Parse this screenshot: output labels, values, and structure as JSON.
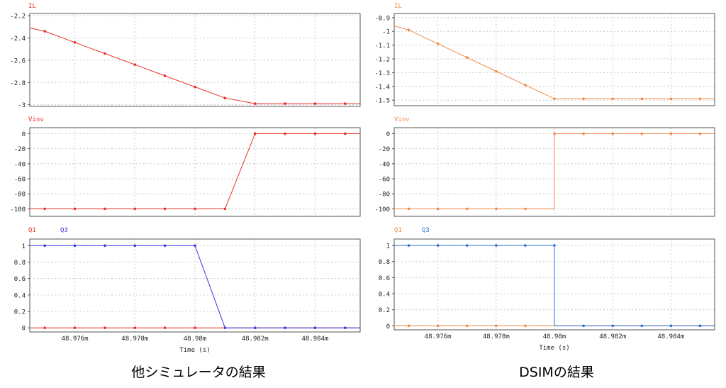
{
  "captions": {
    "left": "他シミュレータの結果",
    "right": "DSIMの結果"
  },
  "xlabel": "Time (s)",
  "colors": {
    "red": "#e8312a",
    "blue": "#3a3ae0",
    "orange": "#f08a4a",
    "dsimBlue": "#2f6fd6",
    "grid": "#c8c8c8",
    "axis": "#555555",
    "text": "#222222"
  },
  "chart_data": [
    {
      "id": "left-IL",
      "type": "line",
      "xlim": [
        48.9745,
        48.9855
      ],
      "ylim": [
        -3.015,
        -2.18
      ],
      "yticks": [
        -2.2,
        -2.4,
        -2.6,
        -2.8,
        -3
      ],
      "ytick_labels": [
        "-2.2",
        "-2.4",
        "-2.6",
        "-2.8",
        "-3"
      ],
      "xticks": [
        48.976,
        48.978,
        48.98,
        48.982,
        48.984
      ],
      "xtick_labels": [],
      "legend": [
        "IL"
      ],
      "series": [
        {
          "name": "IL",
          "color": "red",
          "x": [
            48.9745,
            48.975,
            48.976,
            48.977,
            48.978,
            48.979,
            48.98,
            48.981,
            48.982,
            48.983,
            48.984,
            48.985,
            48.9855
          ],
          "y": [
            -2.31,
            -2.34,
            -2.44,
            -2.54,
            -2.64,
            -2.74,
            -2.84,
            -2.94,
            -2.99,
            -2.99,
            -2.99,
            -2.99,
            -2.99
          ],
          "mx": [
            48.975,
            48.976,
            48.977,
            48.978,
            48.979,
            48.98,
            48.981,
            48.982,
            48.983,
            48.984,
            48.985
          ],
          "my": [
            -2.34,
            -2.44,
            -2.54,
            -2.64,
            -2.74,
            -2.84,
            -2.94,
            -2.99,
            -2.99,
            -2.99,
            -2.99
          ]
        }
      ]
    },
    {
      "id": "left-Vinv",
      "type": "line",
      "xlim": [
        48.9745,
        48.9855
      ],
      "ylim": [
        -110,
        8
      ],
      "yticks": [
        0,
        -20,
        -40,
        -60,
        -80,
        -100
      ],
      "ytick_labels": [
        "0",
        "-20",
        "-40",
        "-60",
        "-80",
        "-100"
      ],
      "xticks": [
        48.976,
        48.978,
        48.98,
        48.982,
        48.984
      ],
      "xtick_labels": [],
      "legend": [
        "Vinv"
      ],
      "series": [
        {
          "name": "Vinv",
          "color": "red",
          "x": [
            48.9745,
            48.975,
            48.976,
            48.977,
            48.978,
            48.979,
            48.98,
            48.981,
            48.982,
            48.983,
            48.984,
            48.985,
            48.9855
          ],
          "y": [
            -100,
            -100,
            -100,
            -100,
            -100,
            -100,
            -100,
            -100,
            0,
            0,
            0,
            0,
            0
          ],
          "mx": [
            48.975,
            48.976,
            48.977,
            48.978,
            48.979,
            48.98,
            48.981,
            48.982,
            48.983,
            48.984,
            48.985
          ],
          "my": [
            -100,
            -100,
            -100,
            -100,
            -100,
            -100,
            -100,
            0,
            0,
            0,
            0
          ]
        }
      ]
    },
    {
      "id": "left-Q",
      "type": "line",
      "xlim": [
        48.9745,
        48.9855
      ],
      "ylim": [
        -0.05,
        1.08
      ],
      "yticks": [
        1,
        0.8,
        0.6,
        0.4,
        0.2,
        0
      ],
      "ytick_labels": [
        "1",
        "0.8",
        "0.6",
        "0.4",
        "0.2",
        "0"
      ],
      "xticks": [
        48.976,
        48.978,
        48.98,
        48.982,
        48.984
      ],
      "xtick_labels": [
        "48.976m",
        "48.978m",
        "48.98m",
        "48.982m",
        "48.984m"
      ],
      "legend": [
        "Q1",
        "Q3"
      ],
      "series": [
        {
          "name": "Q1",
          "color": "red",
          "x": [
            48.9745,
            48.975,
            48.976,
            48.977,
            48.978,
            48.979,
            48.98,
            48.981,
            48.982,
            48.983,
            48.984,
            48.985,
            48.9855
          ],
          "y": [
            0,
            0,
            0,
            0,
            0,
            0,
            0,
            0,
            0,
            0,
            0,
            0,
            0
          ],
          "mx": [
            48.975,
            48.976,
            48.977,
            48.978,
            48.979,
            48.98
          ],
          "my": [
            0,
            0,
            0,
            0,
            0,
            0
          ]
        },
        {
          "name": "Q3",
          "color": "blue",
          "x": [
            48.9745,
            48.975,
            48.976,
            48.977,
            48.978,
            48.979,
            48.98,
            48.981,
            48.982,
            48.983,
            48.984,
            48.985,
            48.9855
          ],
          "y": [
            1,
            1,
            1,
            1,
            1,
            1,
            1,
            0,
            0,
            0,
            0,
            0,
            0
          ],
          "mx": [
            48.975,
            48.976,
            48.977,
            48.978,
            48.979,
            48.98,
            48.981,
            48.982,
            48.983,
            48.984,
            48.985
          ],
          "my": [
            1,
            1,
            1,
            1,
            1,
            1,
            0,
            0,
            0,
            0,
            0
          ]
        }
      ]
    },
    {
      "id": "right-IL",
      "type": "line",
      "xlim": [
        48.9745,
        48.9855
      ],
      "ylim": [
        -1.54,
        -0.87
      ],
      "yticks": [
        -0.9,
        -1,
        -1.1,
        -1.2,
        -1.3,
        -1.4,
        -1.5
      ],
      "ytick_labels": [
        "-0.9",
        "-1",
        "-1.1",
        "-1.2",
        "-1.3",
        "-1.4",
        "-1.5"
      ],
      "xticks": [
        48.976,
        48.978,
        48.98,
        48.982,
        48.984
      ],
      "xtick_labels": [],
      "legend": [
        "IL"
      ],
      "series": [
        {
          "name": "IL",
          "color": "orange",
          "x": [
            48.9745,
            48.975,
            48.976,
            48.977,
            48.978,
            48.979,
            48.98,
            48.981,
            48.982,
            48.983,
            48.984,
            48.985,
            48.9855
          ],
          "y": [
            -0.96,
            -0.99,
            -1.09,
            -1.19,
            -1.29,
            -1.39,
            -1.49,
            -1.49,
            -1.49,
            -1.49,
            -1.49,
            -1.49,
            -1.49
          ],
          "mx": [
            48.975,
            48.976,
            48.977,
            48.978,
            48.979,
            48.98,
            48.981,
            48.982,
            48.983,
            48.984,
            48.985
          ],
          "my": [
            -0.99,
            -1.09,
            -1.19,
            -1.29,
            -1.39,
            -1.49,
            -1.49,
            -1.49,
            -1.49,
            -1.49,
            -1.49
          ]
        }
      ]
    },
    {
      "id": "right-Vinv",
      "type": "line",
      "xlim": [
        48.9745,
        48.9855
      ],
      "ylim": [
        -110,
        8
      ],
      "yticks": [
        0,
        -20,
        -40,
        -60,
        -80,
        -100
      ],
      "ytick_labels": [
        "0",
        "-20",
        "-40",
        "-60",
        "-80",
        "-100"
      ],
      "xticks": [
        48.976,
        48.978,
        48.98,
        48.982,
        48.984
      ],
      "xtick_labels": [],
      "legend": [
        "Vinv"
      ],
      "series": [
        {
          "name": "Vinv",
          "color": "orange",
          "x": [
            48.9745,
            48.975,
            48.976,
            48.977,
            48.978,
            48.979,
            48.98,
            48.98,
            48.981,
            48.982,
            48.983,
            48.984,
            48.985,
            48.9855
          ],
          "y": [
            -100,
            -100,
            -100,
            -100,
            -100,
            -100,
            -100,
            0,
            0,
            0,
            0,
            0,
            0,
            0
          ],
          "mx": [
            48.975,
            48.976,
            48.977,
            48.978,
            48.979,
            48.98,
            48.981,
            48.982,
            48.983,
            48.984,
            48.985
          ],
          "my": [
            -100,
            -100,
            -100,
            -100,
            -100,
            0,
            0,
            0,
            0,
            0,
            0
          ]
        }
      ]
    },
    {
      "id": "right-Q",
      "type": "line",
      "xlim": [
        48.9745,
        48.9855
      ],
      "ylim": [
        -0.05,
        1.08
      ],
      "yticks": [
        1,
        0.8,
        0.6,
        0.4,
        0.2,
        0
      ],
      "ytick_labels": [
        "1",
        "0.8",
        "0.6",
        "0.4",
        "0.2",
        "0"
      ],
      "xticks": [
        48.976,
        48.978,
        48.98,
        48.982,
        48.984
      ],
      "xtick_labels": [
        "48.976m",
        "48.978m",
        "48.98m",
        "48.982m",
        "48.984m"
      ],
      "legend": [
        "Q1",
        "Q3"
      ],
      "series": [
        {
          "name": "Q1",
          "color": "orange",
          "x": [
            48.9745,
            48.975,
            48.976,
            48.977,
            48.978,
            48.979,
            48.98,
            48.981,
            48.982,
            48.983,
            48.984,
            48.985,
            48.9855
          ],
          "y": [
            0,
            0,
            0,
            0,
            0,
            0,
            0,
            0,
            0,
            0,
            0,
            0,
            0
          ],
          "mx": [
            48.975,
            48.976,
            48.977,
            48.978,
            48.979
          ],
          "my": [
            0,
            0,
            0,
            0,
            0
          ]
        },
        {
          "name": "Q3",
          "color": "dsimBlue",
          "x": [
            48.9745,
            48.975,
            48.976,
            48.977,
            48.978,
            48.979,
            48.98,
            48.98,
            48.981,
            48.982,
            48.983,
            48.984,
            48.985,
            48.9855
          ],
          "y": [
            1,
            1,
            1,
            1,
            1,
            1,
            1,
            0,
            0,
            0,
            0,
            0,
            0,
            0
          ],
          "mx": [
            48.975,
            48.976,
            48.977,
            48.978,
            48.979,
            48.98,
            48.981,
            48.982,
            48.983,
            48.984,
            48.985
          ],
          "my": [
            1,
            1,
            1,
            1,
            1,
            1,
            0,
            0,
            0,
            0,
            0
          ]
        }
      ]
    }
  ]
}
